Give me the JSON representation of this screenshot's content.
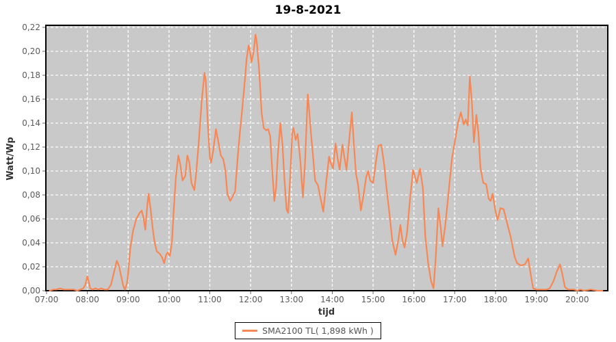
{
  "title": "19-8-2021",
  "colors": {
    "line": "#F88753",
    "plot_bg": "#C9C9C9",
    "grid": "#FFFFFF",
    "plot_border": "#000000",
    "tick": "#666666",
    "tick_text": "#5A5A5A",
    "axis_title_text": "#333333",
    "title_text": "#000000",
    "legend_border": "#000000",
    "legend_text": "#555555"
  },
  "y_axis": {
    "label": "Watt/Wp",
    "tick_labels": [
      "0,00",
      "0,02",
      "0,04",
      "0,06",
      "0,08",
      "0,10",
      "0,12",
      "0,14",
      "0,16",
      "0,18",
      "0,20",
      "0,22"
    ]
  },
  "x_axis": {
    "label": "tijd",
    "tick_labels": [
      "07:00",
      "08:00",
      "09:00",
      "10:00",
      "11:00",
      "12:00",
      "13:00",
      "14:00",
      "15:00",
      "16:00",
      "17:00",
      "18:00",
      "19:00",
      "20:00"
    ]
  },
  "legend": {
    "series_label": "SMA2100 TL( 1,898 kWh )"
  },
  "chart_data": {
    "type": "line",
    "title": "19-8-2021",
    "xlabel": "tijd",
    "ylabel": "Watt/Wp",
    "x_unit": "hour_of_day",
    "xlim": [
      7,
      20.75
    ],
    "ylim": [
      0,
      0.22
    ],
    "x_tick_hours": [
      7,
      8,
      9,
      10,
      11,
      12,
      13,
      14,
      15,
      16,
      17,
      18,
      19,
      20
    ],
    "y_tick_step": 0.02,
    "grid": true,
    "grid_style": "dashed-white",
    "legend_position": "bottom-center",
    "series": [
      {
        "name": "SMA2100 TL( 1,898 kWh )",
        "color": "#F88753",
        "points": [
          [
            7.08,
            0.0
          ],
          [
            7.17,
            0.001
          ],
          [
            7.25,
            0.001
          ],
          [
            7.33,
            0.002
          ],
          [
            7.42,
            0.001
          ],
          [
            7.5,
            0.001
          ],
          [
            7.58,
            0.001
          ],
          [
            7.67,
            0.001
          ],
          [
            7.75,
            0.0
          ],
          [
            7.83,
            0.001
          ],
          [
            7.9,
            0.002
          ],
          [
            7.95,
            0.005
          ],
          [
            8.0,
            0.012
          ],
          [
            8.03,
            0.008
          ],
          [
            8.07,
            0.002
          ],
          [
            8.13,
            0.001
          ],
          [
            8.2,
            0.002
          ],
          [
            8.27,
            0.001
          ],
          [
            8.33,
            0.002
          ],
          [
            8.42,
            0.001
          ],
          [
            8.5,
            0.001
          ],
          [
            8.58,
            0.005
          ],
          [
            8.65,
            0.015
          ],
          [
            8.72,
            0.025
          ],
          [
            8.77,
            0.021
          ],
          [
            8.83,
            0.012
          ],
          [
            8.88,
            0.004
          ],
          [
            8.92,
            0.001
          ],
          [
            8.97,
            0.006
          ],
          [
            9.0,
            0.015
          ],
          [
            9.05,
            0.035
          ],
          [
            9.12,
            0.05
          ],
          [
            9.2,
            0.06
          ],
          [
            9.28,
            0.065
          ],
          [
            9.33,
            0.067
          ],
          [
            9.37,
            0.062
          ],
          [
            9.42,
            0.051
          ],
          [
            9.47,
            0.072
          ],
          [
            9.5,
            0.081
          ],
          [
            9.55,
            0.068
          ],
          [
            9.6,
            0.052
          ],
          [
            9.65,
            0.04
          ],
          [
            9.7,
            0.033
          ],
          [
            9.77,
            0.031
          ],
          [
            9.83,
            0.028
          ],
          [
            9.88,
            0.023
          ],
          [
            9.93,
            0.03
          ],
          [
            9.97,
            0.032
          ],
          [
            10.02,
            0.029
          ],
          [
            10.07,
            0.04
          ],
          [
            10.12,
            0.07
          ],
          [
            10.17,
            0.095
          ],
          [
            10.23,
            0.113
          ],
          [
            10.28,
            0.105
          ],
          [
            10.33,
            0.092
          ],
          [
            10.4,
            0.096
          ],
          [
            10.45,
            0.113
          ],
          [
            10.5,
            0.107
          ],
          [
            10.55,
            0.09
          ],
          [
            10.62,
            0.084
          ],
          [
            10.67,
            0.1
          ],
          [
            10.73,
            0.124
          ],
          [
            10.8,
            0.158
          ],
          [
            10.87,
            0.182
          ],
          [
            10.9,
            0.176
          ],
          [
            10.95,
            0.14
          ],
          [
            11.0,
            0.112
          ],
          [
            11.03,
            0.107
          ],
          [
            11.08,
            0.116
          ],
          [
            11.15,
            0.135
          ],
          [
            11.2,
            0.126
          ],
          [
            11.27,
            0.113
          ],
          [
            11.33,
            0.11
          ],
          [
            11.38,
            0.101
          ],
          [
            11.43,
            0.081
          ],
          [
            11.5,
            0.075
          ],
          [
            11.55,
            0.078
          ],
          [
            11.62,
            0.083
          ],
          [
            11.68,
            0.11
          ],
          [
            11.73,
            0.13
          ],
          [
            11.78,
            0.147
          ],
          [
            11.85,
            0.172
          ],
          [
            11.9,
            0.193
          ],
          [
            11.95,
            0.205
          ],
          [
            11.98,
            0.201
          ],
          [
            12.02,
            0.191
          ],
          [
            12.07,
            0.199
          ],
          [
            12.12,
            0.214
          ],
          [
            12.15,
            0.208
          ],
          [
            12.2,
            0.188
          ],
          [
            12.23,
            0.172
          ],
          [
            12.27,
            0.148
          ],
          [
            12.32,
            0.136
          ],
          [
            12.38,
            0.134
          ],
          [
            12.43,
            0.135
          ],
          [
            12.48,
            0.129
          ],
          [
            12.53,
            0.1
          ],
          [
            12.58,
            0.075
          ],
          [
            12.62,
            0.085
          ],
          [
            12.67,
            0.115
          ],
          [
            12.73,
            0.14
          ],
          [
            12.78,
            0.122
          ],
          [
            12.83,
            0.092
          ],
          [
            12.88,
            0.068
          ],
          [
            12.92,
            0.065
          ],
          [
            12.97,
            0.095
          ],
          [
            13.02,
            0.132
          ],
          [
            13.05,
            0.136
          ],
          [
            13.1,
            0.126
          ],
          [
            13.15,
            0.131
          ],
          [
            13.22,
            0.108
          ],
          [
            13.28,
            0.078
          ],
          [
            13.33,
            0.105
          ],
          [
            13.4,
            0.164
          ],
          [
            13.43,
            0.152
          ],
          [
            13.48,
            0.131
          ],
          [
            13.53,
            0.112
          ],
          [
            13.58,
            0.092
          ],
          [
            13.65,
            0.088
          ],
          [
            13.72,
            0.076
          ],
          [
            13.78,
            0.066
          ],
          [
            13.85,
            0.09
          ],
          [
            13.92,
            0.112
          ],
          [
            13.97,
            0.106
          ],
          [
            14.02,
            0.102
          ],
          [
            14.08,
            0.123
          ],
          [
            14.13,
            0.111
          ],
          [
            14.18,
            0.101
          ],
          [
            14.25,
            0.122
          ],
          [
            14.3,
            0.111
          ],
          [
            14.35,
            0.101
          ],
          [
            14.42,
            0.128
          ],
          [
            14.48,
            0.149
          ],
          [
            14.53,
            0.122
          ],
          [
            14.58,
            0.098
          ],
          [
            14.63,
            0.089
          ],
          [
            14.7,
            0.067
          ],
          [
            14.77,
            0.081
          ],
          [
            14.83,
            0.095
          ],
          [
            14.88,
            0.1
          ],
          [
            14.93,
            0.092
          ],
          [
            15.0,
            0.09
          ],
          [
            15.07,
            0.108
          ],
          [
            15.13,
            0.121
          ],
          [
            15.2,
            0.122
          ],
          [
            15.27,
            0.106
          ],
          [
            15.33,
            0.085
          ],
          [
            15.4,
            0.065
          ],
          [
            15.47,
            0.042
          ],
          [
            15.55,
            0.03
          ],
          [
            15.62,
            0.043
          ],
          [
            15.67,
            0.055
          ],
          [
            15.72,
            0.042
          ],
          [
            15.77,
            0.036
          ],
          [
            15.83,
            0.048
          ],
          [
            15.9,
            0.075
          ],
          [
            15.98,
            0.101
          ],
          [
            16.07,
            0.09
          ],
          [
            16.15,
            0.102
          ],
          [
            16.22,
            0.086
          ],
          [
            16.28,
            0.045
          ],
          [
            16.35,
            0.023
          ],
          [
            16.42,
            0.008
          ],
          [
            16.48,
            0.002
          ],
          [
            16.53,
            0.025
          ],
          [
            16.6,
            0.069
          ],
          [
            16.65,
            0.055
          ],
          [
            16.7,
            0.037
          ],
          [
            16.77,
            0.055
          ],
          [
            16.85,
            0.082
          ],
          [
            16.93,
            0.11
          ],
          [
            17.0,
            0.124
          ],
          [
            17.08,
            0.14
          ],
          [
            17.15,
            0.149
          ],
          [
            17.22,
            0.139
          ],
          [
            17.27,
            0.143
          ],
          [
            17.32,
            0.138
          ],
          [
            17.37,
            0.179
          ],
          [
            17.42,
            0.158
          ],
          [
            17.47,
            0.124
          ],
          [
            17.53,
            0.147
          ],
          [
            17.58,
            0.132
          ],
          [
            17.63,
            0.103
          ],
          [
            17.7,
            0.09
          ],
          [
            17.77,
            0.089
          ],
          [
            17.83,
            0.077
          ],
          [
            17.88,
            0.075
          ],
          [
            17.93,
            0.081
          ],
          [
            18.0,
            0.066
          ],
          [
            18.05,
            0.059
          ],
          [
            18.12,
            0.069
          ],
          [
            18.2,
            0.068
          ],
          [
            18.28,
            0.057
          ],
          [
            18.37,
            0.045
          ],
          [
            18.47,
            0.028
          ],
          [
            18.53,
            0.023
          ],
          [
            18.62,
            0.021
          ],
          [
            18.72,
            0.022
          ],
          [
            18.8,
            0.027
          ],
          [
            18.87,
            0.012
          ],
          [
            18.92,
            0.002
          ],
          [
            19.0,
            0.001
          ],
          [
            19.08,
            0.001
          ],
          [
            19.17,
            0.001
          ],
          [
            19.25,
            0.001
          ],
          [
            19.33,
            0.002
          ],
          [
            19.42,
            0.008
          ],
          [
            19.5,
            0.016
          ],
          [
            19.58,
            0.022
          ],
          [
            19.63,
            0.015
          ],
          [
            19.7,
            0.003
          ],
          [
            19.78,
            0.001
          ],
          [
            19.92,
            0.001
          ],
          [
            20.0,
            0.0
          ],
          [
            20.08,
            0.001
          ],
          [
            20.17,
            0.0
          ],
          [
            20.33,
            0.001
          ],
          [
            20.5,
            0.0
          ],
          [
            20.62,
            0.0
          ]
        ]
      }
    ]
  }
}
